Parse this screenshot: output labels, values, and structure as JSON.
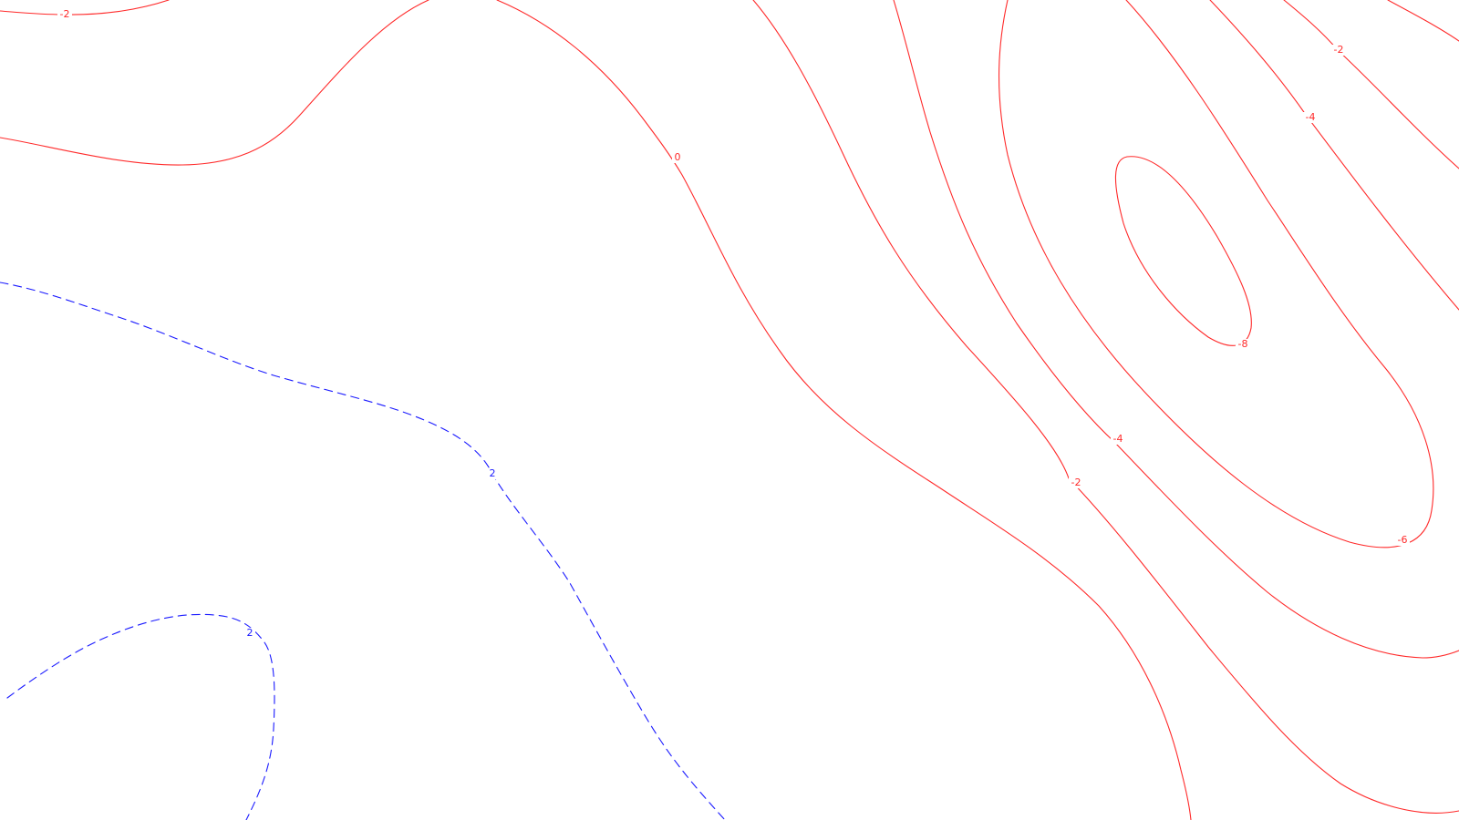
{
  "colors": {
    "background": "#ffffff",
    "negative": "#ff2a2a",
    "positive": "#1a1aff"
  },
  "contour_labels": {
    "neg2_a": "-2",
    "zero": "0",
    "neg2_b": "-2",
    "neg4_a": "-4",
    "neg8": "-8",
    "neg4_b": "-4",
    "neg2_c": "-2",
    "neg6": "-6",
    "pos2_a": "2",
    "pos2_b": "2"
  }
}
